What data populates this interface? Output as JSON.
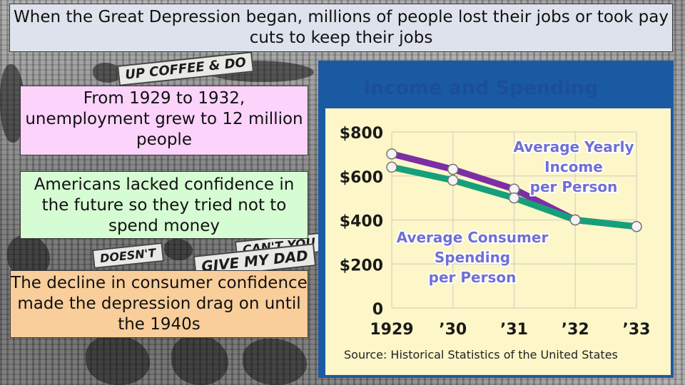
{
  "header": {
    "title": "When the Great Depression began, millions of people lost their jobs or took pay cuts to keep their jobs"
  },
  "callouts": {
    "unemployment": "From 1929 to 1932, unemployment grew to 12 million people",
    "confidence": "Americans lacked confidence in the future so they tried  not to spend money",
    "decline": "The decline in consumer confidence made the depression drag on until the 1940s"
  },
  "background": {
    "sign_texts": [
      "UP COFFEE & DO",
      "DOESN'T",
      "CAN'T YOU",
      "GIVE MY DAD"
    ]
  },
  "colors": {
    "frame": "#1a5aa3",
    "plot_bg": "#fcf6c8",
    "grid": "#d9d2c0",
    "title_text": "#1b4f9a",
    "income_line": "#7b2fa3",
    "spending_line": "#16a07a",
    "series_label_text": "#6f6fd4",
    "axis_text": "#1a1a1a"
  },
  "chart_data": {
    "type": "line",
    "title": "Income and Spending",
    "x": [
      "1929",
      "’30",
      "’31",
      "’32",
      "’33"
    ],
    "y_ticks": [
      "0",
      "$200",
      "$400",
      "$600",
      "$800"
    ],
    "ylim": [
      0,
      800
    ],
    "grid": true,
    "series": [
      {
        "name": "Average Yearly Income per Person",
        "values": [
          700,
          630,
          540,
          400,
          370
        ]
      },
      {
        "name": "Average Consumer Spending per Person",
        "values": [
          640,
          580,
          500,
          400,
          370
        ]
      }
    ],
    "series_label_lines": [
      [
        "Average Yearly",
        "Income",
        "per Person"
      ],
      [
        "Average Consumer",
        "Spending",
        "per Person"
      ]
    ],
    "source": "Source: Historical Statistics of the United States"
  }
}
